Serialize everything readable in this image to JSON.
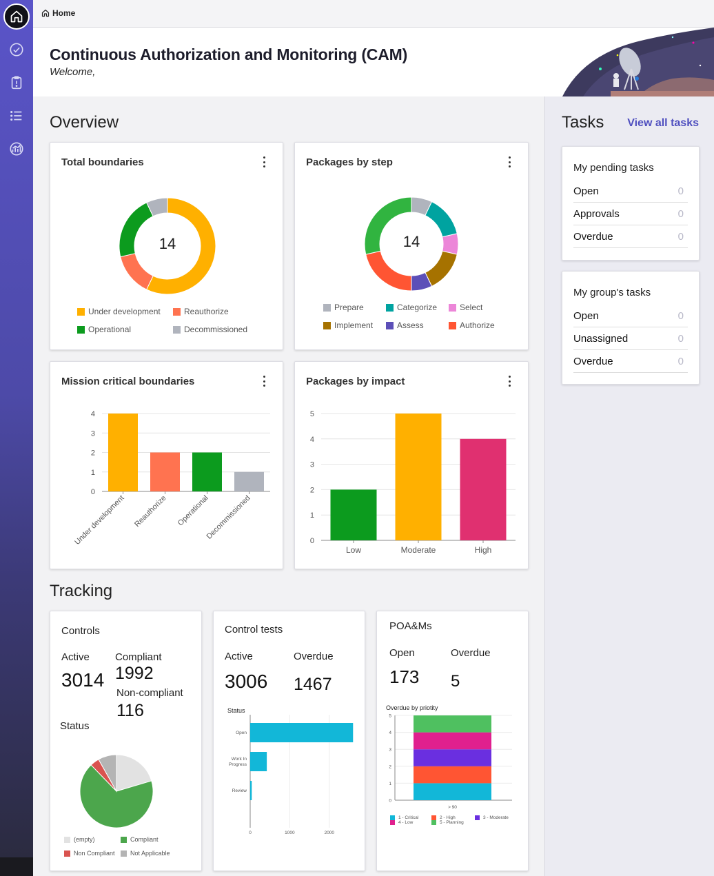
{
  "breadcrumb": {
    "label": "Home"
  },
  "header": {
    "title": "Continuous Authorization and Monitoring (CAM)",
    "welcome": "Welcome,"
  },
  "overview": {
    "title": "Overview",
    "total_boundaries": {
      "title": "Total boundaries",
      "center": "14",
      "slices": [
        {
          "label": "Under development",
          "value": 8,
          "color": "#ffb000"
        },
        {
          "label": "Reauthorize",
          "value": 2,
          "color": "#ff7350"
        },
        {
          "label": "Operational",
          "value": 3,
          "color": "#0c9b1e"
        },
        {
          "label": "Decommissioned",
          "value": 1,
          "color": "#b0b4bd"
        }
      ]
    },
    "packages_by_step": {
      "title": "Packages by step",
      "center": "14",
      "slices": [
        {
          "label": "Prepare",
          "value": 1,
          "color": "#b0b4bd"
        },
        {
          "label": "Categorize",
          "value": 2,
          "color": "#00a3a0"
        },
        {
          "label": "Select",
          "value": 1,
          "color": "#ec86d8"
        },
        {
          "label": "Implement",
          "value": 2,
          "color": "#a67200"
        },
        {
          "label": "Assess",
          "value": 1,
          "color": "#5c4fb8"
        },
        {
          "label": "Authorize",
          "value": 3,
          "color": "#ff5533"
        },
        {
          "label": "",
          "value": 4,
          "color": "#31b440"
        }
      ]
    },
    "mission_critical": {
      "title": "Mission critical boundaries",
      "chart_data": {
        "type": "bar",
        "categories": [
          "Under development",
          "Reauthorize",
          "Operational",
          "Decommissioned"
        ],
        "values": [
          4,
          2,
          2,
          1
        ],
        "colors": [
          "#ffb000",
          "#ff7350",
          "#0c9b1e",
          "#b0b4bd"
        ],
        "ylim": [
          0,
          4
        ],
        "yticks": [
          0,
          1,
          2,
          3,
          4
        ]
      }
    },
    "packages_by_impact": {
      "title": "Packages by impact",
      "chart_data": {
        "type": "bar",
        "categories": [
          "Low",
          "Moderate",
          "High"
        ],
        "values": [
          2,
          5,
          4
        ],
        "colors": [
          "#0c9b1e",
          "#ffb000",
          "#e03070"
        ],
        "ylim": [
          0,
          5
        ],
        "yticks": [
          0,
          1,
          2,
          3,
          4,
          5
        ]
      }
    }
  },
  "tracking": {
    "title": "Tracking",
    "controls": {
      "title": "Controls",
      "active_label": "Active",
      "active_value": "3014",
      "compliant_label": "Compliant",
      "compliant_value": "1992",
      "noncompliant_label": "Non-compliant",
      "noncompliant_value": "116",
      "status_label": "Status",
      "chart_data": {
        "type": "pie",
        "slices": [
          {
            "label": "(empty)",
            "value": 20,
            "color": "#e2e2e2"
          },
          {
            "label": "Compliant",
            "value": 66,
            "color": "#4ca64c"
          },
          {
            "label": "Non Compliant",
            "value": 4,
            "color": "#d9534f"
          },
          {
            "label": "Not Applicable",
            "value": 8,
            "color": "#b4b4b4"
          }
        ]
      }
    },
    "control_tests": {
      "title": "Control tests",
      "active_label": "Active",
      "active_value": "3006",
      "overdue_label": "Overdue",
      "overdue_value": "1467",
      "chart_data": {
        "type": "bar",
        "title": "Status",
        "categories": [
          "Open",
          "Work In Progress",
          "Review"
        ],
        "values": [
          2600,
          420,
          40
        ],
        "xticks": [
          0,
          1000,
          2000
        ],
        "xlim": [
          0,
          2700
        ],
        "color": "#12b7d8"
      }
    },
    "poams": {
      "title": "POA&Ms",
      "open_label": "Open",
      "open_value": "173",
      "overdue_label": "Overdue",
      "overdue_value": "5",
      "chart_data": {
        "type": "bar",
        "title": "Overdue by priotity",
        "categories": [
          "> 90"
        ],
        "series": [
          {
            "name": "1 - Critical",
            "values": [
              1
            ],
            "color": "#12b7d8"
          },
          {
            "name": "2 - High",
            "values": [
              1
            ],
            "color": "#ff5533"
          },
          {
            "name": "3 - Moderate",
            "values": [
              1
            ],
            "color": "#6a2fe0"
          },
          {
            "name": "4 - Low",
            "values": [
              1
            ],
            "color": "#e0208e"
          },
          {
            "name": "5 - Planning",
            "values": [
              1
            ],
            "color": "#4fc060"
          }
        ],
        "ylim": [
          0,
          5
        ],
        "yticks": [
          0,
          1,
          2,
          3,
          4,
          5
        ]
      }
    }
  },
  "tasks": {
    "title": "Tasks",
    "view_all": "View all tasks",
    "pending": {
      "title": "My pending tasks",
      "rows": [
        {
          "label": "Open",
          "count": "0"
        },
        {
          "label": "Approvals",
          "count": "0"
        },
        {
          "label": "Overdue",
          "count": "0"
        }
      ]
    },
    "group": {
      "title": "My group's tasks",
      "rows": [
        {
          "label": "Open",
          "count": "0"
        },
        {
          "label": "Unassigned",
          "count": "0"
        },
        {
          "label": "Overdue",
          "count": "0"
        }
      ]
    }
  }
}
